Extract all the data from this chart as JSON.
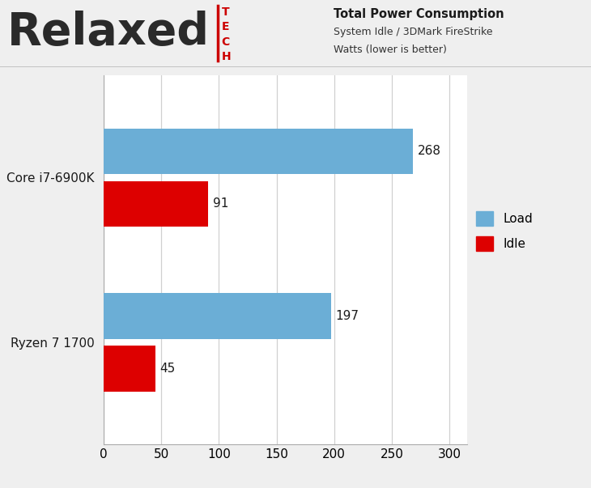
{
  "title_line1": "Total Power Consumption",
  "title_line2": "System Idle / 3DMark FireStrike",
  "title_line3": "Watts (lower is better)",
  "categories": [
    "Core i7-6900K",
    "Ryzen 7 1700"
  ],
  "load_values": [
    268,
    197
  ],
  "idle_values": [
    91,
    45
  ],
  "load_color": "#6BAED6",
  "idle_color": "#DD0000",
  "bar_height": 0.28,
  "xlim": [
    0,
    315
  ],
  "xticks": [
    0,
    50,
    100,
    150,
    200,
    250,
    300
  ],
  "background_color": "#EFEFEF",
  "plot_bg_color": "#FFFFFF",
  "grid_color": "#D0D0D0",
  "label_fontsize": 11,
  "value_fontsize": 11,
  "legend_fontsize": 11,
  "header_bg": "#EFEFEF"
}
